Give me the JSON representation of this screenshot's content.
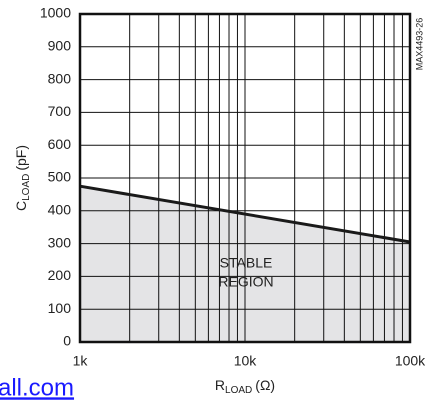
{
  "chart_data": {
    "type": "area-line",
    "y_label": {
      "main": "C",
      "sub": "LOAD",
      "unit": "(pF)"
    },
    "x_label": {
      "main": "R",
      "sub": "LOAD",
      "unit": "(Ω)"
    },
    "x": [
      1000,
      100000
    ],
    "series": [
      {
        "values": [
          475,
          305
        ],
        "color": "#1a1a1a",
        "fill": "#e4e4e6"
      }
    ],
    "xlim": [
      1000,
      100000
    ],
    "xscale": "log",
    "xticks": [
      {
        "value": 1000,
        "label": "1k"
      },
      {
        "value": 10000,
        "label": "10k"
      },
      {
        "value": 100000,
        "label": "100k"
      }
    ],
    "xminor": [
      2000,
      3000,
      4000,
      5000,
      6000,
      7000,
      8000,
      9000,
      20000,
      30000,
      40000,
      50000,
      60000,
      70000,
      80000,
      90000
    ],
    "ylim": [
      0,
      1000
    ],
    "yticks": [
      0,
      100,
      200,
      300,
      400,
      500,
      600,
      700,
      800,
      900,
      1000
    ],
    "grid": true,
    "annotation": [
      "STABLE",
      "REGION"
    ],
    "code": "MAX4493-26",
    "footer_text": "all.com"
  }
}
